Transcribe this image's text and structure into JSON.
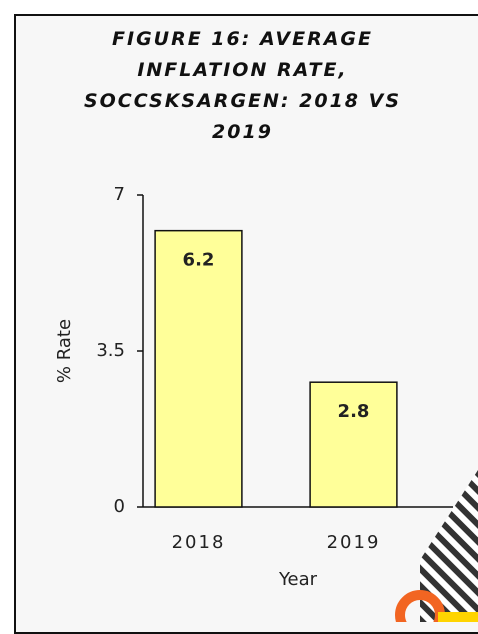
{
  "chart_data": {
    "type": "bar",
    "title": "FIGURE 16: AVERAGE INFLATION RATE, SOCCSKSARGEN: 2018 VS 2019",
    "categories": [
      "2018",
      "2019"
    ],
    "values": [
      6.2,
      2.8
    ],
    "color": "#ffff99",
    "xlabel": "Year",
    "ylabel": "% Rate",
    "ylim": [
      0,
      7
    ],
    "yticks": [
      0,
      3.5,
      7
    ],
    "grid": false
  }
}
